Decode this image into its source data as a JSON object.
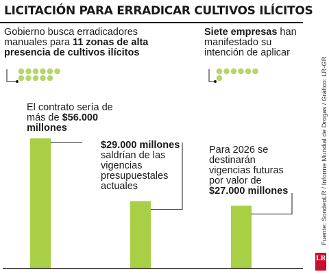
{
  "title": "LICITACIÓN PARA ERRADICAR CULTIVOS ILÍCITOS",
  "source": "Fuente: SondeoLR / Informe Mundial de Drogas / Gráfico: LR-GR",
  "logo": "LR",
  "colors": {
    "bar": "#a8cf45",
    "dot": "#b5d66a",
    "text": "#1a1a1a",
    "logo": "#c8102e"
  },
  "zones": {
    "lines": [
      [
        {
          "t": "Gobierno busca erradicadores",
          "b": false
        }
      ],
      [
        {
          "t": "manuales para ",
          "b": false
        },
        {
          "t": "11 zonas de alta",
          "b": true
        }
      ],
      [
        {
          "t": "presencia de cultivos ilícitos",
          "b": true
        }
      ]
    ],
    "count": 11
  },
  "companies": {
    "lines": [
      [
        {
          "t": "Siete empresas",
          "b": true
        },
        {
          "t": " han",
          "b": false
        }
      ],
      [
        {
          "t": "manifestado su",
          "b": false
        }
      ],
      [
        {
          "t": "intención de aplicar",
          "b": false
        }
      ]
    ],
    "count": 7
  },
  "chart_data": {
    "type": "bar",
    "unit": "millones",
    "categories": [
      "Contrato",
      "Vigencias presupuestales actuales",
      "Vigencias futuras 2026"
    ],
    "values": [
      56000,
      29000,
      27000
    ],
    "ylim": [
      0,
      56000
    ],
    "grid": false,
    "annotations": [
      {
        "category": "Contrato",
        "lines": [
          [
            {
              "t": "El contrato sería de",
              "b": false
            }
          ],
          [
            {
              "t": "más de ",
              "b": false
            },
            {
              "t": "$56.000",
              "b": true
            }
          ],
          [
            {
              "t": "millones",
              "b": true
            }
          ]
        ]
      },
      {
        "category": "Vigencias presupuestales actuales",
        "lines": [
          [
            {
              "t": "$29.000 millones",
              "b": true
            }
          ],
          [
            {
              "t": "saldrían de las",
              "b": false
            }
          ],
          [
            {
              "t": "vigencias",
              "b": false
            }
          ],
          [
            {
              "t": "presupuestales",
              "b": false
            }
          ],
          [
            {
              "t": "actuales",
              "b": false
            }
          ]
        ]
      },
      {
        "category": "Vigencias futuras 2026",
        "lines": [
          [
            {
              "t": "Para 2026 se",
              "b": false
            }
          ],
          [
            {
              "t": "destinarán",
              "b": false
            }
          ],
          [
            {
              "t": "vigencias futuras",
              "b": false
            }
          ],
          [
            {
              "t": "por valor de",
              "b": false
            }
          ],
          [
            {
              "t": "$27.000 millones",
              "b": true
            }
          ]
        ]
      }
    ]
  }
}
